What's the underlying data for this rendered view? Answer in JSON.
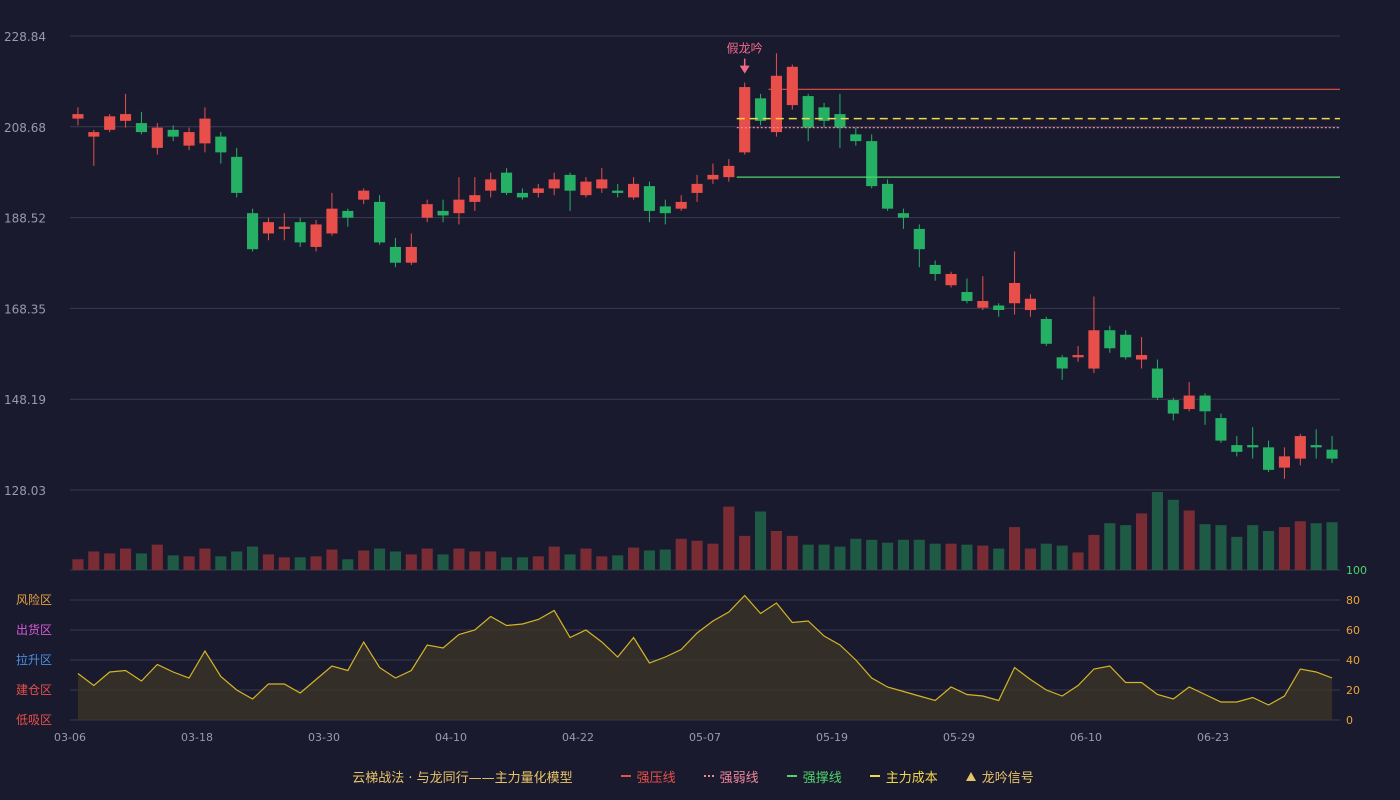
{
  "chart_data": {
    "type": "candlestick",
    "x_tick_labels": [
      "03-06",
      "03-18",
      "03-30",
      "04-10",
      "04-22",
      "05-07",
      "05-19",
      "05-29",
      "06-10",
      "06-23"
    ],
    "x_tick_index": [
      0,
      8,
      16,
      24,
      32,
      40,
      48,
      56,
      64,
      72
    ],
    "price_axis": {
      "ticks": [
        "228.84",
        "208.68",
        "188.52",
        "168.35",
        "148.19",
        "128.03"
      ],
      "range": [
        128.03,
        228.84
      ]
    },
    "candles": [
      [
        210.5,
        211.5,
        209.0,
        213.0
      ],
      [
        206.5,
        207.5,
        200.0,
        208.0
      ],
      [
        208.0,
        211.0,
        207.5,
        211.5
      ],
      [
        210.0,
        211.5,
        208.5,
        216.0
      ],
      [
        209.5,
        207.5,
        207.0,
        212.0
      ],
      [
        204.0,
        208.5,
        202.5,
        209.5
      ],
      [
        208.0,
        206.5,
        205.5,
        209.0
      ],
      [
        204.5,
        207.5,
        203.5,
        208.5
      ],
      [
        205.0,
        210.5,
        203.0,
        213.0
      ],
      [
        206.5,
        203.0,
        200.5,
        207.5
      ],
      [
        202.0,
        194.0,
        193.0,
        204.0
      ],
      [
        189.5,
        181.5,
        181.0,
        190.5
      ],
      [
        185.0,
        187.5,
        183.5,
        188.5
      ],
      [
        186.0,
        186.5,
        183.5,
        189.5
      ],
      [
        187.5,
        183.0,
        182.0,
        188.5
      ],
      [
        182.0,
        187.0,
        181.0,
        188.0
      ],
      [
        185.0,
        190.5,
        184.5,
        194.0
      ],
      [
        190.0,
        188.5,
        186.5,
        190.5
      ],
      [
        192.5,
        194.5,
        191.5,
        195.0
      ],
      [
        192.0,
        183.0,
        182.5,
        193.5
      ],
      [
        182.0,
        178.5,
        177.5,
        184.0
      ],
      [
        178.5,
        182.0,
        178.0,
        185.0
      ],
      [
        188.5,
        191.5,
        187.5,
        192.5
      ],
      [
        190.0,
        189.0,
        187.5,
        192.5
      ],
      [
        189.5,
        192.5,
        187.0,
        197.5
      ],
      [
        192.0,
        193.5,
        190.0,
        197.5
      ],
      [
        194.5,
        197.0,
        193.0,
        198.5
      ],
      [
        198.5,
        194.0,
        193.5,
        199.5
      ],
      [
        194.0,
        193.0,
        192.5,
        195.0
      ],
      [
        194.0,
        195.0,
        193.0,
        196.0
      ],
      [
        195.0,
        197.0,
        193.5,
        198.5
      ],
      [
        198.0,
        194.5,
        190.0,
        198.5
      ],
      [
        193.5,
        196.5,
        193.0,
        197.5
      ],
      [
        195.0,
        197.0,
        194.0,
        199.5
      ],
      [
        194.5,
        194.0,
        193.0,
        196.0
      ],
      [
        193.0,
        196.0,
        192.5,
        197.5
      ],
      [
        195.5,
        190.0,
        187.5,
        196.5
      ],
      [
        191.0,
        189.5,
        187.0,
        192.5
      ],
      [
        190.5,
        192.0,
        190.0,
        193.5
      ],
      [
        194.0,
        196.0,
        192.0,
        198.0
      ],
      [
        197.0,
        198.0,
        196.0,
        200.5
      ],
      [
        197.5,
        200.0,
        196.5,
        201.5
      ],
      [
        203.0,
        217.5,
        202.5,
        218.5
      ],
      [
        215.0,
        210.0,
        209.0,
        216.0
      ],
      [
        207.5,
        220.0,
        206.5,
        225.0
      ],
      [
        213.5,
        222.0,
        212.5,
        222.5
      ],
      [
        215.5,
        208.5,
        205.5,
        216.0
      ],
      [
        213.0,
        210.0,
        208.5,
        214.0
      ],
      [
        211.5,
        208.5,
        204.0,
        216.0
      ],
      [
        207.0,
        205.5,
        204.5,
        208.5
      ],
      [
        205.5,
        195.5,
        195.0,
        207.0
      ],
      [
        196.0,
        190.5,
        190.0,
        197.0
      ],
      [
        189.5,
        188.5,
        186.0,
        190.5
      ],
      [
        186.0,
        181.5,
        177.5,
        187.0
      ],
      [
        178.0,
        176.0,
        174.5,
        179.0
      ],
      [
        173.5,
        176.0,
        173.0,
        176.5
      ],
      [
        172.0,
        170.0,
        169.5,
        175.0
      ],
      [
        168.5,
        170.0,
        168.0,
        175.5
      ],
      [
        169.0,
        168.0,
        166.5,
        169.5
      ],
      [
        169.5,
        174.0,
        167.0,
        181.0
      ],
      [
        168.0,
        170.5,
        166.5,
        171.5
      ],
      [
        166.0,
        160.5,
        160.0,
        166.5
      ],
      [
        157.5,
        155.0,
        152.5,
        158.0
      ],
      [
        157.5,
        158.0,
        156.5,
        160.0
      ],
      [
        155.0,
        163.5,
        154.0,
        171.0
      ],
      [
        163.5,
        159.5,
        158.5,
        164.5
      ],
      [
        162.5,
        157.5,
        157.0,
        163.5
      ],
      [
        157.0,
        158.0,
        155.0,
        162.0
      ],
      [
        155.0,
        148.5,
        148.0,
        157.0
      ],
      [
        148.0,
        145.0,
        143.5,
        148.5
      ],
      [
        146.0,
        149.0,
        145.5,
        152.0
      ],
      [
        149.0,
        145.5,
        142.5,
        149.5
      ],
      [
        144.0,
        139.0,
        138.5,
        145.0
      ],
      [
        138.0,
        136.5,
        135.5,
        140.0
      ],
      [
        138.0,
        137.5,
        135.0,
        142.0
      ],
      [
        137.5,
        132.5,
        132.0,
        139.0
      ],
      [
        133.0,
        135.5,
        130.5,
        137.5
      ],
      [
        135.0,
        140.0,
        133.5,
        140.5
      ],
      [
        138.0,
        137.5,
        135.0,
        141.5
      ],
      [
        137.0,
        135.0,
        134.0,
        140.0
      ]
    ],
    "volume": [
      11,
      19,
      17,
      22,
      17,
      26,
      15,
      14,
      22,
      14,
      19,
      24,
      16,
      13,
      13,
      14,
      21,
      11,
      20,
      22,
      19,
      16,
      22,
      16,
      22,
      19,
      19,
      13,
      13,
      14,
      24,
      16,
      22,
      14,
      15,
      23,
      20,
      21,
      32,
      30,
      27,
      65,
      35,
      60,
      40,
      35,
      26,
      26,
      24,
      32,
      31,
      28,
      31,
      31,
      27,
      27,
      26,
      25,
      22,
      44,
      22,
      27,
      25,
      18,
      36,
      48,
      46,
      58,
      80,
      72,
      61,
      47,
      46,
      34,
      46,
      40,
      44,
      50,
      48,
      49
    ],
    "rise_color": "#e94f4a",
    "fall_color": "#26b066",
    "resistance_line": {
      "value": 217.0,
      "start_index": 44,
      "color": "#e94f4a"
    },
    "weak_line": {
      "value": 208.5,
      "start_index": 42,
      "color": "#f0869a"
    },
    "cost_line": {
      "value": 210.5,
      "start_index": 42,
      "color": "#f0d84a"
    },
    "support_line": {
      "value": 197.5,
      "start_index": 42,
      "color": "#4ed46a"
    },
    "signal": {
      "index": 42,
      "label": "假龙吟"
    },
    "oscillator": {
      "range": [
        0,
        100
      ],
      "ticks": [
        "100",
        "80",
        "60",
        "40",
        "20",
        "0"
      ],
      "zones": [
        "风险区",
        "出货区",
        "拉升区",
        "建仓区",
        "低吸区"
      ],
      "zone_colors": [
        "#e8a33c",
        "#d65ad6",
        "#4a90e2",
        "#e94f4a",
        "#e94f4a"
      ],
      "values": [
        31,
        23,
        32,
        33,
        26,
        37,
        32,
        28,
        46,
        29,
        20,
        14,
        24,
        24,
        18,
        27,
        36,
        33,
        52,
        35,
        28,
        33,
        50,
        48,
        57,
        60,
        69,
        63,
        64,
        67,
        73,
        55,
        60,
        52,
        42,
        55,
        38,
        42,
        47,
        58,
        66,
        72,
        83,
        71,
        78,
        65,
        66,
        56,
        50,
        40,
        28,
        22,
        19,
        16,
        13,
        22,
        17,
        16,
        13,
        35,
        27,
        20,
        16,
        23,
        34,
        36,
        25,
        25,
        17,
        14,
        22,
        17,
        12,
        12,
        15,
        10,
        16,
        34,
        32,
        28
      ]
    },
    "footer_title": "云梯战法 · 与龙同行——主力量化模型",
    "legend": [
      {
        "label": "强压线",
        "color": "#e94f4a",
        "style": "solid"
      },
      {
        "label": "强弱线",
        "color": "#f0869a",
        "style": "dotted"
      },
      {
        "label": "强撑线",
        "color": "#4ed46a",
        "style": "solid"
      },
      {
        "label": "主力成本",
        "color": "#f0d84a",
        "style": "dashed"
      },
      {
        "label": "龙吟信号",
        "color": "#e8c468",
        "style": "triangle"
      }
    ]
  }
}
